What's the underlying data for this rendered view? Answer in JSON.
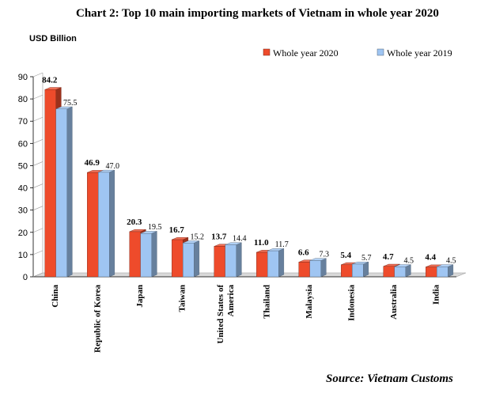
{
  "chart_data": {
    "type": "bar",
    "title": "Chart 2: Top 10 main importing markets of Vietnam in whole year  2020",
    "unit_label": "USD Billion",
    "source": "Source: Vietnam Customs",
    "categories": [
      "China",
      "Republic of Korea",
      "Japan",
      "Taiwan",
      "United States of America",
      "Thailand",
      "Malaysia",
      "Indonesia",
      "Australia",
      "India"
    ],
    "series": [
      {
        "name": "Whole year 2020",
        "values": [
          84.2,
          46.9,
          20.3,
          16.7,
          13.7,
          11.0,
          6.6,
          5.4,
          4.7,
          4.4
        ],
        "labels": [
          "84.2",
          "46.9",
          "20.3",
          "16.7",
          "13.7",
          "11.0",
          "6.6",
          "5.4",
          "4.7",
          "4.4"
        ],
        "color": "#ee4b2b"
      },
      {
        "name": "Whole year 2019",
        "values": [
          75.5,
          47.0,
          19.5,
          15.2,
          14.4,
          11.7,
          7.3,
          5.7,
          4.5,
          4.5
        ],
        "labels": [
          "75.5",
          "47.0",
          "19.5",
          "15.2",
          "14.4",
          "11.7",
          "7.3",
          "5.7",
          "4.5",
          "4.5"
        ],
        "color": "#9fc5f2"
      }
    ],
    "ylim": [
      0,
      90
    ],
    "yticks": [
      "0",
      "10",
      "20",
      "30",
      "40",
      "50",
      "60",
      "70",
      "80",
      "90"
    ],
    "legend_position": "top-right",
    "grid": false
  }
}
